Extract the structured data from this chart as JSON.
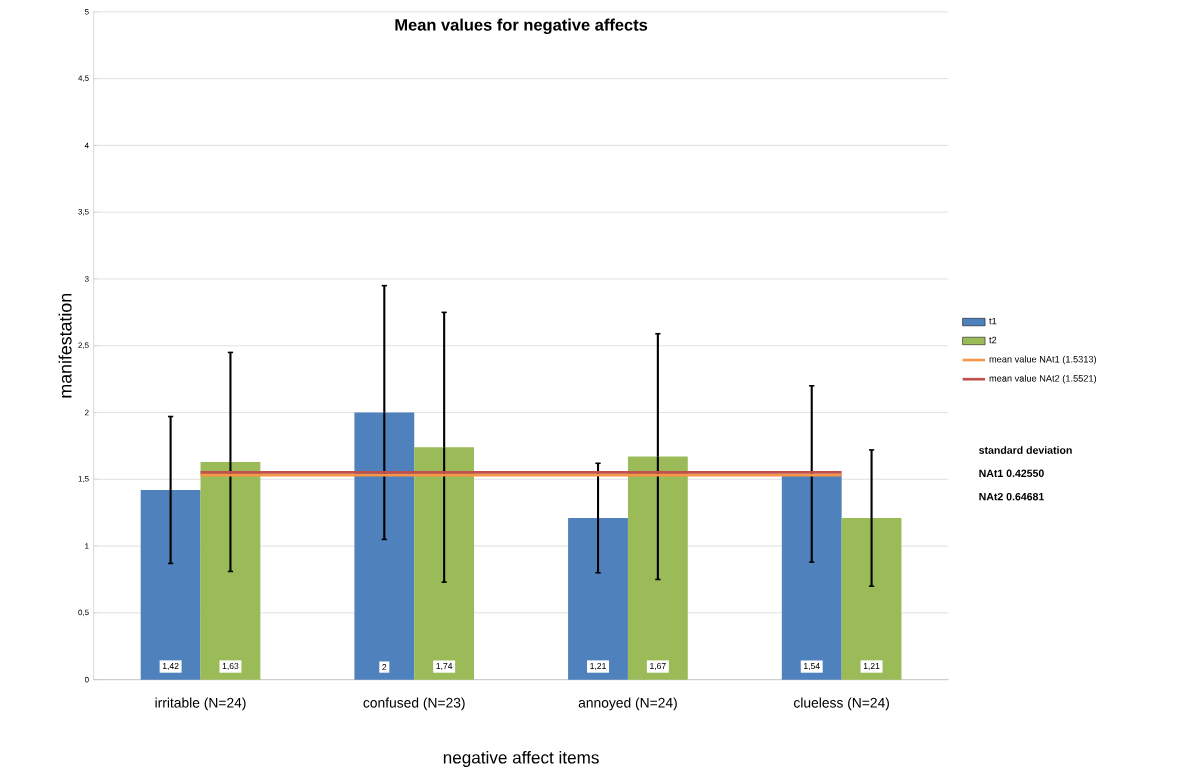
{
  "chart_data": {
    "type": "bar",
    "title": "Mean values for negative affects",
    "xlabel": "negative affect items",
    "ylabel": "manifestation",
    "categories": [
      "irritable (N=24)",
      "confused (N=23)",
      "annoyed (N=24)",
      "clueless (N=24)"
    ],
    "series": [
      {
        "name": "t1",
        "color": "#4f81bd",
        "values": [
          1.42,
          2,
          1.21,
          1.54
        ],
        "value_labels": [
          "1,42",
          "2",
          "1,21",
          "1,54"
        ],
        "errors": [
          0.55,
          0.95,
          0.41,
          0.66
        ]
      },
      {
        "name": "t2",
        "color": "#9bbb59",
        "values": [
          1.63,
          1.74,
          1.67,
          1.21
        ],
        "value_labels": [
          "1,63",
          "1,74",
          "1,67",
          "1,21"
        ],
        "errors": [
          0.82,
          1.01,
          0.92,
          0.51
        ]
      }
    ],
    "ref_lines": [
      {
        "axis": "y",
        "value": 1.5313,
        "label": "mean value NAt1 (1.5313)",
        "color": "#f79646"
      },
      {
        "axis": "y",
        "value": 1.5521,
        "label": "mean value NAt2 (1.5521)",
        "color": "#c0504d"
      }
    ],
    "annotations": [
      "standard deviation",
      "NAt1 0.42550",
      "NAt2 0.64681"
    ],
    "ylim": [
      0,
      5
    ],
    "yticks": [
      0,
      {
        "value": 0.5,
        "label": "0,5"
      },
      1,
      {
        "value": 1.5,
        "label": "1,5"
      },
      2,
      {
        "value": 2.5,
        "label": "2,5"
      },
      3,
      {
        "value": 3.5,
        "label": "3,5"
      },
      4,
      {
        "value": 4.5,
        "label": "4,5"
      },
      5
    ],
    "grid": "y",
    "legend": "right"
  }
}
